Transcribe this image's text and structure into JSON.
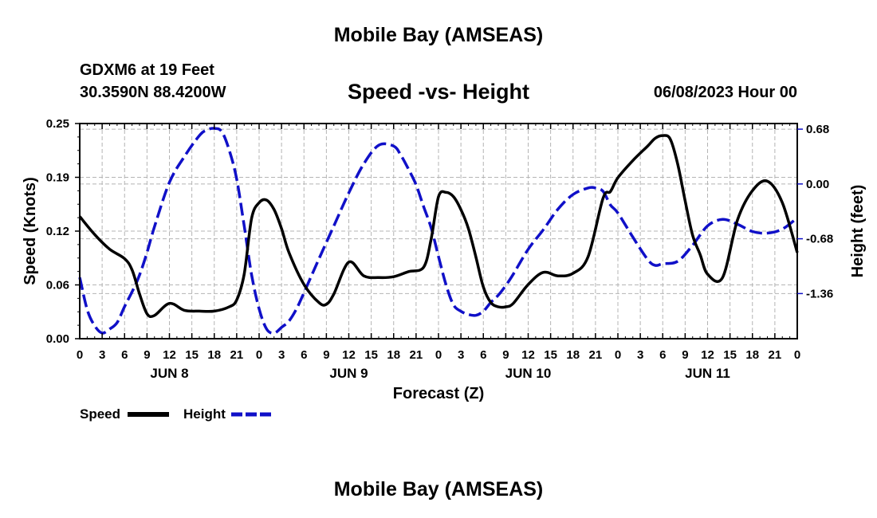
{
  "header": {
    "title": "Mobile Bay (AMSEAS)",
    "station": "GDXM6 at 19 Feet",
    "coords": "30.3590N  88.4200W",
    "subtitle": "Speed -vs- Height",
    "run_time": "06/08/2023 Hour 00"
  },
  "footer": {
    "title": "Mobile Bay (AMSEAS)"
  },
  "chart_data": {
    "type": "line",
    "xlabel": "Forecast (Z)",
    "ylabel_left": "Speed (Knots)",
    "ylabel_right": "Height (feet)",
    "x_range": [
      0,
      96
    ],
    "x_tick_labels": [
      "0",
      "3",
      "6",
      "9",
      "12",
      "15",
      "18",
      "21",
      "0",
      "3",
      "6",
      "9",
      "12",
      "15",
      "18",
      "21",
      "0",
      "3",
      "6",
      "9",
      "12",
      "15",
      "18",
      "21",
      "0",
      "3",
      "6",
      "9",
      "12",
      "15",
      "18",
      "21",
      "0"
    ],
    "day_labels": [
      {
        "text": "JUN 8",
        "hour": 12
      },
      {
        "text": "JUN 9",
        "hour": 36
      },
      {
        "text": "JUN 10",
        "hour": 60
      },
      {
        "text": "JUN 11",
        "hour": 84
      }
    ],
    "left_axis": {
      "range": [
        0,
        0.25
      ],
      "ticks": [
        "0.00",
        "0.06",
        "0.12",
        "0.19",
        "0.25"
      ]
    },
    "right_axis": {
      "range": [
        -1.92,
        0.75
      ],
      "ticks": [
        "-1.36",
        "-0.68",
        "0.00",
        "0.68"
      ],
      "tick_values": [
        -1.36,
        -0.68,
        0.0,
        0.68
      ]
    },
    "grid": true,
    "legend_position": "bottom-left",
    "series": [
      {
        "name": "Speed",
        "axis": "left",
        "color": "#000000",
        "style": "solid",
        "x": [
          0,
          2,
          4,
          6,
          7,
          8,
          9,
          10,
          12,
          14,
          16,
          18,
          20,
          21,
          22,
          23,
          24,
          25,
          26,
          27,
          28,
          30,
          32,
          33,
          34,
          36,
          38,
          40,
          42,
          44,
          46,
          47,
          48,
          49,
          50,
          51,
          52,
          53,
          54,
          55,
          56,
          57,
          58,
          60,
          62,
          64,
          66,
          68,
          70,
          71,
          72,
          74,
          76,
          77,
          78,
          79,
          80,
          81,
          82,
          83,
          84,
          86,
          88,
          90,
          92,
          94,
          96
        ],
        "y": [
          0.142,
          0.121,
          0.104,
          0.093,
          0.08,
          0.052,
          0.029,
          0.027,
          0.041,
          0.033,
          0.032,
          0.032,
          0.037,
          0.045,
          0.075,
          0.14,
          0.158,
          0.161,
          0.15,
          0.128,
          0.1,
          0.063,
          0.042,
          0.04,
          0.052,
          0.089,
          0.073,
          0.071,
          0.072,
          0.078,
          0.083,
          0.115,
          0.165,
          0.17,
          0.165,
          0.15,
          0.128,
          0.095,
          0.06,
          0.042,
          0.037,
          0.037,
          0.041,
          0.063,
          0.077,
          0.073,
          0.076,
          0.095,
          0.163,
          0.171,
          0.187,
          0.207,
          0.224,
          0.233,
          0.236,
          0.232,
          0.203,
          0.16,
          0.12,
          0.098,
          0.075,
          0.071,
          0.138,
          0.172,
          0.183,
          0.158,
          0.1
        ]
      },
      {
        "name": "Height",
        "axis": "right",
        "color": "#1010c8",
        "style": "dashed",
        "x": [
          0,
          1,
          2,
          3,
          4,
          5,
          6,
          7,
          8,
          9,
          10,
          12,
          14,
          16,
          17,
          18,
          19,
          20,
          21,
          22,
          23,
          24,
          25,
          26,
          27,
          28,
          29,
          30,
          31,
          32,
          34,
          36,
          38,
          40,
          42,
          43,
          44,
          45,
          46,
          47,
          48,
          49,
          50,
          51,
          52,
          53,
          54,
          55,
          56,
          57,
          58,
          60,
          62,
          64,
          66,
          68,
          69,
          70,
          71,
          72,
          74,
          76,
          77,
          78,
          80,
          82,
          84,
          86,
          88,
          90,
          92,
          94,
          96
        ],
        "y": [
          -1.16,
          -1.56,
          -1.76,
          -1.85,
          -1.8,
          -1.72,
          -1.52,
          -1.34,
          -1.13,
          -0.85,
          -0.53,
          0.02,
          0.34,
          0.6,
          0.67,
          0.69,
          0.65,
          0.42,
          0.06,
          -0.52,
          -1.13,
          -1.55,
          -1.8,
          -1.85,
          -1.78,
          -1.7,
          -1.55,
          -1.35,
          -1.14,
          -0.93,
          -0.52,
          -0.11,
          0.25,
          0.48,
          0.47,
          0.35,
          0.18,
          -0.01,
          -0.28,
          -0.54,
          -0.9,
          -1.25,
          -1.5,
          -1.58,
          -1.62,
          -1.63,
          -1.58,
          -1.47,
          -1.38,
          -1.26,
          -1.12,
          -0.81,
          -0.57,
          -0.31,
          -0.13,
          -0.05,
          -0.05,
          -0.09,
          -0.26,
          -0.36,
          -0.66,
          -0.94,
          -1.01,
          -0.99,
          -0.96,
          -0.76,
          -0.52,
          -0.44,
          -0.5,
          -0.59,
          -0.61,
          -0.56,
          -0.42
        ]
      }
    ],
    "legend": [
      {
        "label": "Speed",
        "color": "#000000",
        "style": "solid"
      },
      {
        "label": "Height",
        "color": "#1010c8",
        "style": "dashed"
      }
    ]
  }
}
